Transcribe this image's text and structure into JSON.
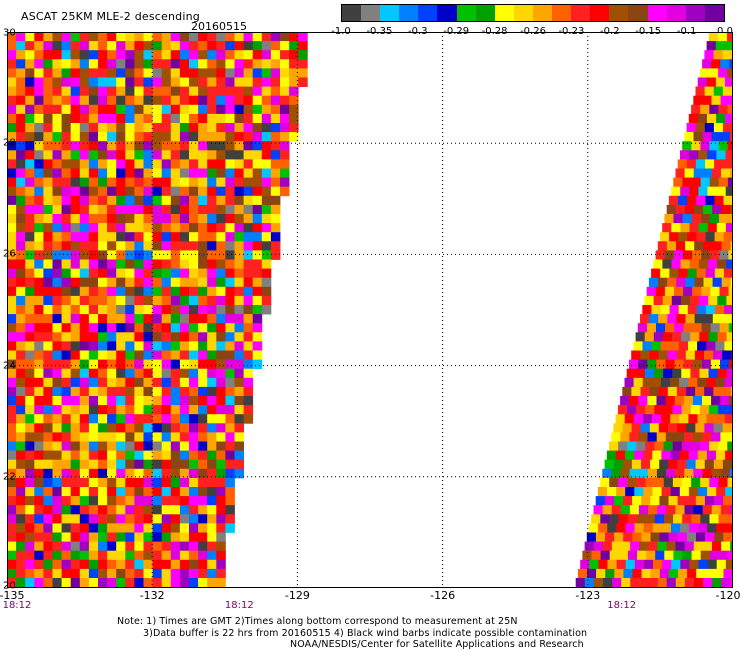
{
  "header": {
    "title": "ASCAT 25KM MLE-2 descending",
    "date": "20160515"
  },
  "colorbar": {
    "colors": [
      "#404040",
      "#808080",
      "#00c8ff",
      "#0080ff",
      "#0040ff",
      "#0000c8",
      "#00c000",
      "#00a000",
      "#ffff00",
      "#ffd700",
      "#ffa500",
      "#ff6000",
      "#ff2020",
      "#ff0000",
      "#a05000",
      "#8b4513",
      "#ff00ff",
      "#e000e0",
      "#a000c0",
      "#7000a0"
    ],
    "ticks": [
      "-1.0",
      "-0.35",
      "-0.3",
      "-0.29",
      "-0.28",
      "-0.26",
      "-0.23",
      "-0.2",
      "-0.15",
      "-0.1",
      "0.0"
    ]
  },
  "chart_data": {
    "type": "heatmap",
    "xlabel": "",
    "ylabel": "",
    "x_ticks": [
      "-135",
      "-132",
      "-129",
      "-126",
      "-123",
      "-120"
    ],
    "y_ticks": [
      "30",
      "28",
      "26",
      "24",
      "22",
      "20"
    ],
    "xlim": [
      -135,
      -120
    ],
    "ylim": [
      20,
      30
    ],
    "grid": true,
    "time_labels": [
      {
        "lon": -135,
        "label": "18:12"
      },
      {
        "lon": -130.2,
        "label": "18:12"
      },
      {
        "lon": -122.3,
        "label": "18:12"
      }
    ],
    "swaths": [
      {
        "name": "",
        "lon_range_at_30": [
          -135,
          -128.8
        ],
        "lon_range_at_20": [
          -135,
          -130.7
        ]
      },
      {
        "name": "",
        "lon_range_at_30": [
          -120.5,
          -120
        ],
        "lon_range_at_20": [
          -123.3,
          -120
        ]
      }
    ]
  },
  "footer": {
    "line1": "Note: 1) Times are GMT 2)Times along bottom correspond to measurement at 25N",
    "line2": "3)Data buffer is 22 hrs from 20160515 4) Black wind barbs indicate possible contamination",
    "line3": "NOAA/NESDIS/Center for Satellite Applications and Research"
  }
}
